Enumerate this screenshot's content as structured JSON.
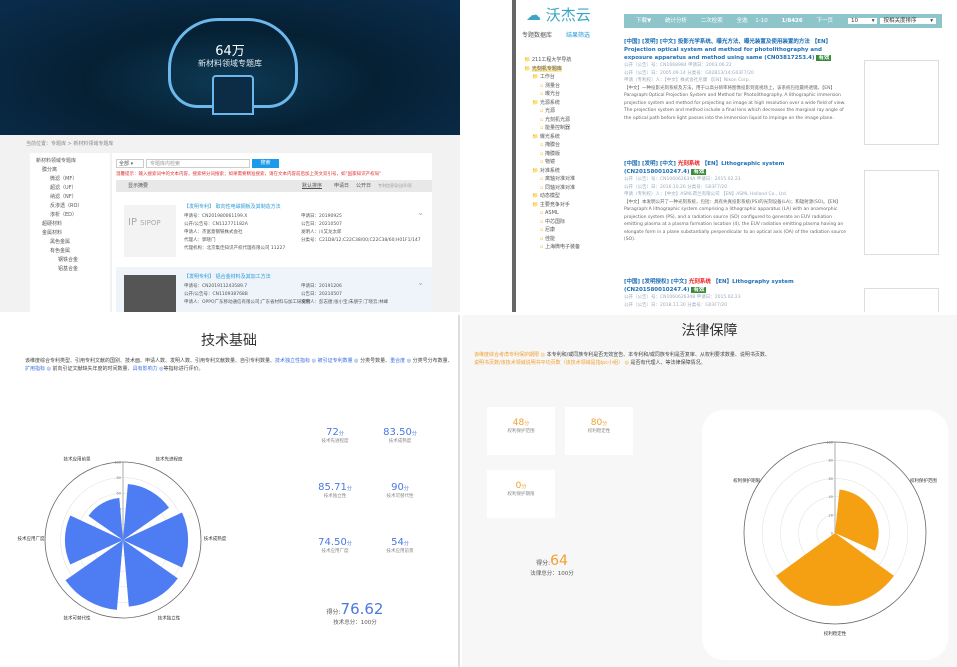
{
  "topleft": {
    "banner": {
      "count": "64万",
      "subtitle": "新材料领域专题库"
    },
    "breadcrumb": "当前位置：专题库 > 新材料领域专题库",
    "sidebar": {
      "root": "新材料领域专题库",
      "items": [
        "膜分离",
        "微滤（MF）",
        "超滤（UF）",
        "纳滤（NF）",
        "反渗透（RO）",
        "渗析（ED）",
        "超硬材料",
        "金属材料",
        "黑色金属",
        "有色金属",
        "钢铁合金",
        "铝基合金"
      ]
    },
    "search": {
      "scope": "全部",
      "placeholder": "专题库内检索",
      "button": "搜索",
      "tip": "温馨提示：输入搜索词中的文本内容，搜索将分词搜索；如果需要精准搜索，请在文本内容前后加上英文双引号，如\"国家知识产权局\""
    },
    "toolbar": {
      "toggle": "显示摘要",
      "sort": "默认排序",
      "apply_date": "申请日",
      "pub_date": "公开日",
      "export": "专利信息导出(0)项"
    },
    "results": [
      {
        "title": "【发明专利】 取向性电磁钢板及其制造方法",
        "img": "SIPOP",
        "app_no": "申请号：CN201980061199.X",
        "pub_no": "公开/公告号：CN112771182A",
        "applicant": "申请人：杰富意钢铁株式会社",
        "agent": "代理人：郭晓门",
        "agency": "代理机构：北京集佳知识产权代理有限公司 11227",
        "app_date": "申请日：20190925",
        "pub_date": "公告日：20210507",
        "inventor": "发明人：川又龙太郎",
        "ipc": "分类号：C21D8/12;C22C38/00;C22C38/60;H01F1/147"
      },
      {
        "title": "【发明专利】 铝合金材料及其加工方法",
        "app_no": "申请号：CN201911243589.7",
        "pub_no": "公开/公告号：CN110938768B",
        "applicant": "申请人：OPPO广东移动通信有限公司;广东省材料与加工研究所",
        "app_date": "申请日：20191206",
        "pub_date": "公告日：20210507",
        "inventor": "发明人：彭志捷;张小宝;朱朋宁;丁晓云;林峰"
      }
    ]
  },
  "topright": {
    "logo": "沃杰云",
    "tabs": [
      "专题数据库",
      "结果筛选"
    ],
    "tree": [
      "211工程大学导航",
      "光刻机专题库",
      "工作台",
      "测量台",
      "曝光台",
      "光源系统",
      "光源",
      "光刻机光源",
      "能量控制器",
      "曝光系统",
      "掩膜台",
      "掩膜版",
      "物镜",
      "对准系统",
      "离轴对准对准",
      "同轴对准对准",
      "动态模型",
      "主要竞争对手",
      "ASML",
      "中芯国际",
      "尼康",
      "佳能",
      "上海微电子装备"
    ],
    "toolbar": {
      "items": [
        "下载▼",
        "统计分析",
        "二次检索",
        "全选"
      ],
      "range": "1-10",
      "total": "1/8426",
      "next": "下一页",
      "per_page": "10",
      "sort": "按相关度排序"
    },
    "records": [
      {
        "head": "[中国] [发明] [中文] 投影光学系统、曝光方法、曝光装置及使用装置的方法 【EN】Projection optical system and method for photolithography and exposure apparatus and method using same (CN03817253.4)",
        "tag": "有效",
        "meta1": "公开（公告）号：CN1668984  申请日：2003.06.22",
        "meta2": "公开（公告）日：2005.09.14  分类号：G02B13/14;G03F7/20",
        "meta3": "申请（专利权）人：【中文】株式会社尼康 【EN】Nikon Corp.",
        "abstract": "【中文】一种投影光刻系统及方法，用于以高分辨率将图像投影到宽视场上，该系统包括最终透镜。【EN】Paragraph:Optical Projection System and Method for Photolithography. A lithographic immersion projection system and method for projecting an image at high resolution over a wide field of view. The projection system and method include a final lens which decreases the marginal ray angle of the optical path before light passes into the immersion liquid to impinge on the image plane."
      },
      {
        "head": "[中国] [发明] [中文] ",
        "hl": "光刻系统",
        "head2": " 【EN】Lithographic system (CN201580010247.4)",
        "tag": "有效",
        "meta1": "公开（公告）号：CN106062634A  申请日：2015.02.23",
        "meta2": "公开（公告）日：2016.10.26  分类号：G03F7/20",
        "meta3": "申请（专利权）人：【中文】ASML荷兰有限公司 【EN】ASML Holland Co., Ltd.",
        "abstract": "【中文】本发明公开了一种光刻系统，包括：具有失真投影系统(PS)的光刻设备(LA)；和辐射源(SO)。【EN】Paragraph:A lithographic system comprising a lithographic apparatus (LA) with an anamorphic projection system (PS), and a radiation source (SO) configured to generate an EUV radiation emitting plasma at a plasma formation location (4), the EUV radiation emitting plasma having an elongate form in a plane substantially perpendicular to an optical axis (OA) of the radiation source (SO)."
      },
      {
        "head": "[中国] [发明授权] [中文] ",
        "hl": "光刻系统",
        "head2": " 【EN】Lithography system (CN201580010247.4)",
        "tag": "有效",
        "meta1": "公开（公告）号：CN106062634B  申请日：2015.02.23",
        "meta2": "公开（公告）日：2018.11.30  分类号：G03F7/20"
      }
    ]
  },
  "tech": {
    "title": "技术基础",
    "desc_plain1": "该维度综合专利类型、引用专利文献的国别、技术面、申请人数、发明人数、引用专利文献数量、自引专利数量、",
    "link1": "技术独立性指标 ◎",
    "link2": "被引证专利数量 ◎",
    "desc_plain2": "分类号数量、",
    "link3": "重合度 ◎",
    "desc_plain3": "分类号分布数量、",
    "link4": "扩用指标 ◎",
    "desc_plain4": "前向引证文献缺失年度的时间数量、",
    "link5": "具有影响力 ◎",
    "desc_plain5": "等指标进行评价。",
    "stats": [
      {
        "value": "72",
        "unit": "分",
        "label": "技术先进程度"
      },
      {
        "value": "83.50",
        "unit": "分",
        "label": "技术成熟度"
      },
      {
        "value": "85.71",
        "unit": "分",
        "label": "技术独立性"
      },
      {
        "value": "90",
        "unit": "分",
        "label": "技术可替代性"
      },
      {
        "value": "74.50",
        "unit": "分",
        "label": "技术应用广度"
      },
      {
        "value": "54",
        "unit": "分",
        "label": "技术应用前景"
      }
    ],
    "score_label": "得分:",
    "score": "76.62",
    "total": "技术总分：100分",
    "color": "#4d7cf3"
  },
  "legal": {
    "title": "法律保障",
    "link1": "该维度综合考虑专利保护期限 ◎",
    "desc1": "本专利和/或同族专利是否无效宣告、本专利和/或同族专利是否复审、从权利要求数量、说明书页数、",
    "link2": "说明书页数/该技术领域说明书平均页数（该技术领域是指ipc小组） ◎",
    "desc2": "是否有代理人、等法律保障情况。",
    "stats": [
      {
        "value": "48",
        "unit": "分",
        "label": "权利保护范围"
      },
      {
        "value": "80",
        "unit": "分",
        "label": "权利稳定性"
      },
      {
        "value": "0",
        "unit": "分",
        "label": "权利保护期限"
      }
    ],
    "score_label": "得分:",
    "score": "64",
    "total": "法律总分：100分",
    "color": "#f4a012"
  },
  "chart_data": [
    {
      "type": "polar-bar",
      "rlim": [
        0,
        100
      ],
      "rticks": [
        0,
        20,
        40,
        60,
        80,
        100
      ],
      "categories": [
        "技术先进程度",
        "技术成熟度",
        "技术独立性",
        "技术可替代性",
        "技术应用广度",
        "技术应用前景"
      ],
      "values": [
        72,
        83.5,
        85.71,
        90,
        74.5,
        54
      ],
      "color": "#4d7cf3",
      "grid": true
    },
    {
      "type": "polar-bar",
      "rlim": [
        0,
        100
      ],
      "rticks": [
        0,
        20,
        40,
        60,
        80,
        100
      ],
      "categories": [
        "权利保护范围",
        "权利稳定性",
        "权利保护期限"
      ],
      "values": [
        48,
        80,
        0
      ],
      "color": "#f4a012",
      "grid": true
    }
  ]
}
